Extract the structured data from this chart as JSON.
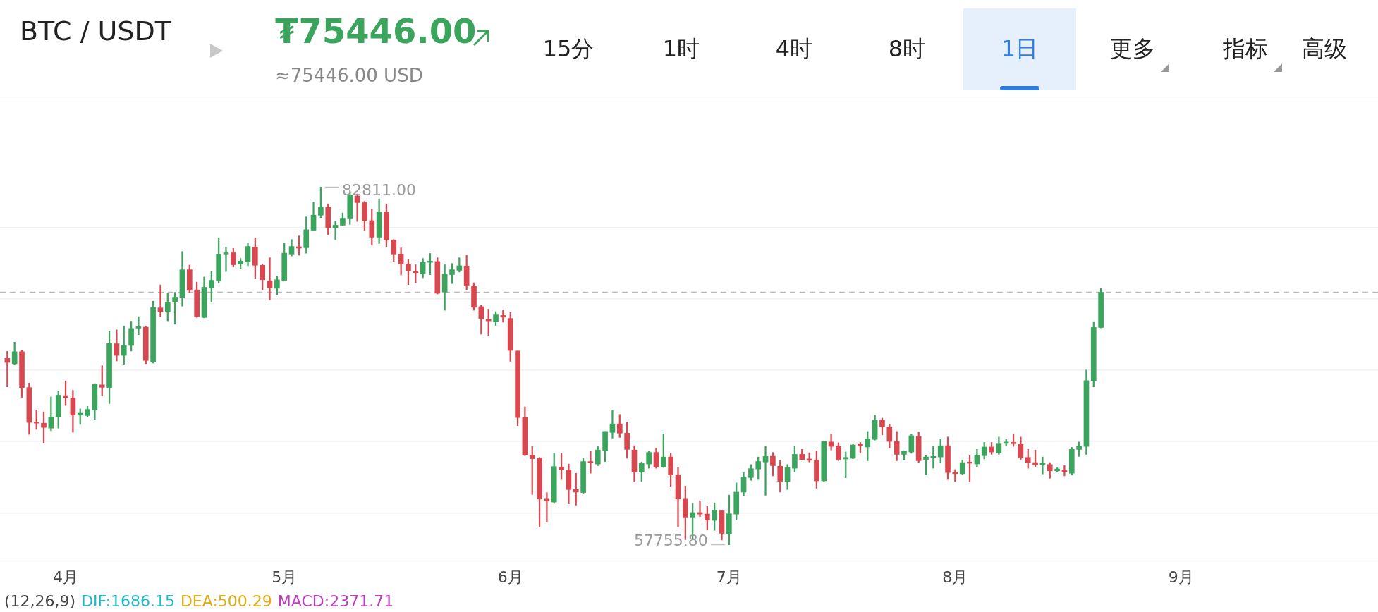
{
  "chart_data": {
    "type": "candlestick",
    "title": "BTC / USDT",
    "subtitle": "≈75446.00 USD",
    "annotations": [
      "₮75446.00",
      "15分",
      "1时",
      "4时",
      "8时",
      "1日",
      "更多",
      "指标",
      "高级",
      "(12,26,9)",
      "DIF:1686.15",
      "DEA:500.29",
      "MACD:2371.71",
      {
        "text": "82811.00",
        "x": "--05-06",
        "y": 82811
      },
      {
        "text": "57755.80",
        "x": "--07-01",
        "y": 57755.8
      }
    ],
    "x": [
      "--03-24",
      "--03-25",
      "--03-26",
      "--03-27",
      "--03-28",
      "--03-29",
      "--03-30",
      "--03-31",
      "--04-01",
      "--04-02",
      "--04-03",
      "--04-04",
      "--04-05",
      "--04-06",
      "--04-07",
      "--04-08",
      "--04-09",
      "--04-10",
      "--04-11",
      "--04-12",
      "--04-13",
      "--04-14",
      "--04-15",
      "--04-16",
      "--04-17",
      "--04-18",
      "--04-19",
      "--04-20",
      "--04-21",
      "--04-22",
      "--04-23",
      "--04-24",
      "--04-25",
      "--04-26",
      "--04-27",
      "--04-28",
      "--04-29",
      "--04-30",
      "--05-01",
      "--05-02",
      "--05-03",
      "--05-04",
      "--05-05",
      "--05-06",
      "--05-07",
      "--05-08",
      "--05-09",
      "--05-10",
      "--05-11",
      "--05-12",
      "--05-13",
      "--05-14",
      "--05-15",
      "--05-16",
      "--05-17",
      "--05-18",
      "--05-19",
      "--05-20",
      "--05-21",
      "--05-22",
      "--05-23",
      "--05-24",
      "--05-25",
      "--05-26",
      "--05-27",
      "--05-28",
      "--05-29",
      "--05-30",
      "--05-31",
      "--06-01",
      "--06-02",
      "--06-03",
      "--06-04",
      "--06-05",
      "--06-06",
      "--06-07",
      "--06-08",
      "--06-09",
      "--06-10",
      "--06-11",
      "--06-12",
      "--06-13",
      "--06-14",
      "--06-15",
      "--06-16",
      "--06-17",
      "--06-18",
      "--06-19",
      "--06-20",
      "--06-21",
      "--06-22",
      "--06-23",
      "--06-24",
      "--06-25",
      "--06-26",
      "--06-27",
      "--06-28",
      "--06-29",
      "--06-30",
      "--07-01",
      "--07-02",
      "--07-03",
      "--07-04",
      "--07-05",
      "--07-06",
      "--07-07",
      "--07-08",
      "--07-09",
      "--07-10",
      "--07-11",
      "--07-12",
      "--07-13",
      "--07-14",
      "--07-15",
      "--07-16",
      "--07-17",
      "--07-18",
      "--07-19",
      "--07-20",
      "--07-21",
      "--07-22",
      "--07-23",
      "--07-24",
      "--07-25",
      "--07-26",
      "--07-27",
      "--07-28",
      "--07-29",
      "--07-30",
      "--07-31",
      "--08-01",
      "--08-02",
      "--08-03",
      "--08-04",
      "--08-05",
      "--08-06",
      "--08-07",
      "--08-08",
      "--08-09",
      "--08-10",
      "--08-11",
      "--08-12",
      "--08-13",
      "--08-14",
      "--08-15",
      "--08-16",
      "--08-17",
      "--08-18",
      "--08-19",
      "--08-20",
      "--08-21"
    ],
    "ohlc": [
      [
        70810,
        71310,
        68820,
        70530
      ],
      [
        70440,
        71950,
        70370,
        71280
      ],
      [
        71280,
        71370,
        68090,
        68770
      ],
      [
        68770,
        69090,
        65490,
        66330
      ],
      [
        66370,
        67210,
        65840,
        66280
      ],
      [
        66280,
        67070,
        64880,
        65980
      ],
      [
        65930,
        68120,
        65750,
        66720
      ],
      [
        66720,
        68540,
        65930,
        68240
      ],
      [
        68210,
        69240,
        67510,
        68070
      ],
      [
        68030,
        68580,
        65630,
        66840
      ],
      [
        66840,
        67280,
        66190,
        66980
      ],
      [
        66810,
        67450,
        66720,
        67240
      ],
      [
        67210,
        69050,
        66540,
        69000
      ],
      [
        68960,
        70300,
        68210,
        68790
      ],
      [
        68770,
        72720,
        67650,
        71860
      ],
      [
        71840,
        72810,
        70630,
        71020
      ],
      [
        71020,
        73070,
        70400,
        71720
      ],
      [
        71720,
        73420,
        71330,
        72910
      ],
      [
        72930,
        73740,
        72470,
        73030
      ],
      [
        73000,
        73070,
        70440,
        70670
      ],
      [
        70580,
        74820,
        70490,
        74390
      ],
      [
        74350,
        75960,
        73740,
        74090
      ],
      [
        74050,
        75370,
        73440,
        74750
      ],
      [
        74750,
        75440,
        73210,
        75100
      ],
      [
        75090,
        78300,
        74470,
        77020
      ],
      [
        77020,
        77350,
        75400,
        75580
      ],
      [
        75610,
        76160,
        73680,
        73740
      ],
      [
        73680,
        76510,
        73650,
        75790
      ],
      [
        75750,
        76890,
        74750,
        76280
      ],
      [
        76250,
        79260,
        76090,
        78120
      ],
      [
        78120,
        78600,
        76890,
        78210
      ],
      [
        78210,
        78510,
        77210,
        77370
      ],
      [
        77420,
        77810,
        77070,
        77630
      ],
      [
        77560,
        78890,
        77300,
        78650
      ],
      [
        78600,
        79260,
        76400,
        77330
      ],
      [
        77330,
        77420,
        75610,
        76320
      ],
      [
        76250,
        77860,
        74910,
        75750
      ],
      [
        75720,
        76580,
        75280,
        76320
      ],
      [
        76280,
        78880,
        76230,
        78180
      ],
      [
        78120,
        79140,
        77980,
        78650
      ],
      [
        78630,
        79390,
        78040,
        78530
      ],
      [
        78560,
        80720,
        78180,
        79820
      ],
      [
        79790,
        81770,
        79770,
        80840
      ],
      [
        80840,
        82811,
        80670,
        81400
      ],
      [
        81400,
        81630,
        79440,
        79960
      ],
      [
        79960,
        80400,
        79120,
        80140
      ],
      [
        80140,
        81000,
        80090,
        80630
      ],
      [
        80630,
        82420,
        80190,
        82250
      ],
      [
        82190,
        82330,
        80400,
        81720
      ],
      [
        81720,
        81810,
        79790,
        80440
      ],
      [
        80460,
        81280,
        78740,
        79300
      ],
      [
        79300,
        81980,
        78860,
        81070
      ],
      [
        81070,
        81630,
        78610,
        79090
      ],
      [
        79090,
        79140,
        77600,
        78120
      ],
      [
        78120,
        78560,
        76650,
        77420
      ],
      [
        77420,
        77720,
        75980,
        76950
      ],
      [
        76930,
        77370,
        76110,
        76820
      ],
      [
        76750,
        77810,
        76460,
        77540
      ],
      [
        77540,
        78160,
        76670,
        77630
      ],
      [
        77600,
        77860,
        75320,
        75370
      ],
      [
        75460,
        77370,
        74180,
        76720
      ],
      [
        76680,
        77460,
        76050,
        77020
      ],
      [
        76980,
        77860,
        76860,
        77300
      ],
      [
        77280,
        78040,
        75630,
        75890
      ],
      [
        75890,
        76110,
        74180,
        74390
      ],
      [
        74440,
        74530,
        72510,
        73600
      ],
      [
        73560,
        74260,
        72420,
        73440
      ],
      [
        73390,
        74090,
        73120,
        73860
      ],
      [
        73820,
        74210,
        73350,
        73700
      ],
      [
        73610,
        74030,
        70610,
        71370
      ],
      [
        71330,
        71330,
        66100,
        66670
      ],
      [
        66670,
        67420,
        64000,
        64050
      ],
      [
        64030,
        64650,
        61280,
        63790
      ],
      [
        63820,
        63880,
        59000,
        60960
      ],
      [
        60960,
        61420,
        59350,
        60820
      ],
      [
        60750,
        64170,
        60660,
        63240
      ],
      [
        63210,
        64170,
        62330,
        63030
      ],
      [
        62980,
        63420,
        60630,
        61630
      ],
      [
        61630,
        62770,
        60540,
        61450
      ],
      [
        61420,
        63820,
        61370,
        63590
      ],
      [
        63590,
        64300,
        62770,
        63520
      ],
      [
        63420,
        64650,
        63300,
        64400
      ],
      [
        64350,
        65700,
        63590,
        65700
      ],
      [
        65630,
        67210,
        65230,
        66230
      ],
      [
        66230,
        66890,
        65280,
        65580
      ],
      [
        65580,
        66370,
        63820,
        64440
      ],
      [
        64400,
        64700,
        62160,
        62860
      ],
      [
        62860,
        63560,
        62190,
        63470
      ],
      [
        63420,
        64300,
        63120,
        64230
      ],
      [
        64230,
        64520,
        63120,
        63210
      ],
      [
        63210,
        65520,
        63170,
        63910
      ],
      [
        63910,
        64170,
        61810,
        62650
      ],
      [
        62650,
        63170,
        59000,
        60960
      ],
      [
        60960,
        61840,
        58120,
        59700
      ],
      [
        59700,
        60660,
        58210,
        60020
      ],
      [
        60020,
        60840,
        59730,
        59910
      ],
      [
        59910,
        60440,
        58790,
        59490
      ],
      [
        59470,
        60700,
        58770,
        60170
      ],
      [
        60140,
        60190,
        58090,
        58560
      ],
      [
        58520,
        61240,
        57755.8,
        59930
      ],
      [
        59910,
        62100,
        59520,
        61450
      ],
      [
        61450,
        62810,
        61190,
        62510
      ],
      [
        62470,
        63380,
        62280,
        63090
      ],
      [
        63070,
        63910,
        62330,
        63590
      ],
      [
        63560,
        64650,
        61230,
        63950
      ],
      [
        63960,
        64230,
        62590,
        63300
      ],
      [
        63260,
        63650,
        61450,
        62210
      ],
      [
        62190,
        63380,
        61630,
        63170
      ],
      [
        63120,
        64650,
        62860,
        64090
      ],
      [
        64090,
        64440,
        63700,
        63740
      ],
      [
        63770,
        64210,
        63560,
        63680
      ],
      [
        63680,
        64350,
        61720,
        62240
      ],
      [
        62240,
        65000,
        62190,
        65000
      ],
      [
        64960,
        65520,
        64400,
        64650
      ],
      [
        64650,
        64910,
        63650,
        63740
      ],
      [
        63770,
        64260,
        62450,
        63880
      ],
      [
        63820,
        64790,
        63790,
        64750
      ],
      [
        64790,
        64930,
        64170,
        64700
      ],
      [
        64610,
        65700,
        63650,
        65170
      ],
      [
        65140,
        66860,
        65090,
        66490
      ],
      [
        66490,
        66630,
        65450,
        66020
      ],
      [
        66020,
        66190,
        64520,
        65000
      ],
      [
        65000,
        65700,
        63650,
        64090
      ],
      [
        64090,
        64350,
        63700,
        64300
      ],
      [
        64260,
        65490,
        64170,
        65400
      ],
      [
        65350,
        65660,
        63520,
        63650
      ],
      [
        63740,
        64000,
        62650,
        63910
      ],
      [
        63880,
        64650,
        63120,
        63950
      ],
      [
        63910,
        65140,
        63520,
        64700
      ],
      [
        64700,
        65310,
        62330,
        62820
      ],
      [
        62820,
        63030,
        62190,
        62740
      ],
      [
        62740,
        63680,
        62680,
        63520
      ],
      [
        63560,
        64000,
        62190,
        63470
      ],
      [
        63420,
        64440,
        63240,
        64050
      ],
      [
        64000,
        64930,
        63770,
        64610
      ],
      [
        64610,
        64930,
        64090,
        64260
      ],
      [
        64210,
        65310,
        64090,
        64820
      ],
      [
        64860,
        65140,
        64700,
        64960
      ],
      [
        64930,
        65490,
        64650,
        64840
      ],
      [
        64790,
        65310,
        63740,
        63880
      ],
      [
        63880,
        64440,
        63120,
        63520
      ],
      [
        63520,
        64400,
        63210,
        63380
      ],
      [
        63350,
        63910,
        62720,
        63470
      ],
      [
        63380,
        63520,
        62420,
        62940
      ],
      [
        62940,
        63150,
        62860,
        63070
      ],
      [
        62980,
        63300,
        62590,
        62860
      ],
      [
        62770,
        64580,
        62650,
        64440
      ],
      [
        64440,
        64960,
        63950,
        64670
      ],
      [
        64650,
        70000,
        64090,
        69260
      ],
      [
        69260,
        73390,
        68820,
        72980
      ],
      [
        72980,
        75750,
        72950,
        75446
      ]
    ],
    "colors": [
      "#d9474f",
      "#3ba55d",
      "#d9474f",
      "#d9474f",
      "#d9474f",
      "#d9474f",
      "#3ba55d",
      "#3ba55d",
      "#d9474f",
      "#d9474f",
      "#3ba55d",
      "#3ba55d",
      "#3ba55d",
      "#d9474f",
      "#3ba55d",
      "#d9474f",
      "#3ba55d",
      "#3ba55d",
      "#3ba55d",
      "#d9474f",
      "#3ba55d",
      "#d9474f",
      "#3ba55d",
      "#3ba55d",
      "#3ba55d",
      "#d9474f",
      "#d9474f",
      "#3ba55d",
      "#3ba55d",
      "#3ba55d",
      "#3ba55d",
      "#d9474f",
      "#3ba55d",
      "#3ba55d",
      "#d9474f",
      "#d9474f",
      "#d9474f",
      "#3ba55d",
      "#3ba55d",
      "#3ba55d",
      "#d9474f",
      "#3ba55d",
      "#3ba55d",
      "#3ba55d",
      "#d9474f",
      "#3ba55d",
      "#3ba55d",
      "#3ba55d",
      "#d9474f",
      "#d9474f",
      "#d9474f",
      "#3ba55d",
      "#d9474f",
      "#d9474f",
      "#d9474f",
      "#d9474f",
      "#d9474f",
      "#3ba55d",
      "#3ba55d",
      "#d9474f",
      "#3ba55d",
      "#3ba55d",
      "#3ba55d",
      "#d9474f",
      "#d9474f",
      "#d9474f",
      "#d9474f",
      "#3ba55d",
      "#d9474f",
      "#d9474f",
      "#d9474f",
      "#d9474f",
      "#d9474f",
      "#d9474f",
      "#d9474f",
      "#3ba55d",
      "#d9474f",
      "#d9474f",
      "#d9474f",
      "#3ba55d",
      "#d9474f",
      "#3ba55d",
      "#3ba55d",
      "#3ba55d",
      "#d9474f",
      "#d9474f",
      "#d9474f",
      "#3ba55d",
      "#3ba55d",
      "#d9474f",
      "#3ba55d",
      "#d9474f",
      "#d9474f",
      "#d9474f",
      "#3ba55d",
      "#d9474f",
      "#d9474f",
      "#3ba55d",
      "#d9474f",
      "#3ba55d",
      "#3ba55d",
      "#3ba55d",
      "#3ba55d",
      "#3ba55d",
      "#3ba55d",
      "#d9474f",
      "#d9474f",
      "#3ba55d",
      "#3ba55d",
      "#d9474f",
      "#d9474f",
      "#d9474f",
      "#3ba55d",
      "#d9474f",
      "#d9474f",
      "#3ba55d",
      "#3ba55d",
      "#d9474f",
      "#3ba55d",
      "#3ba55d",
      "#d9474f",
      "#d9474f",
      "#d9474f",
      "#3ba55d",
      "#3ba55d",
      "#d9474f",
      "#3ba55d",
      "#3ba55d",
      "#3ba55d",
      "#d9474f",
      "#d9474f",
      "#3ba55d",
      "#d9474f",
      "#3ba55d",
      "#3ba55d",
      "#d9474f",
      "#3ba55d",
      "#3ba55d",
      "#d9474f",
      "#d9474f",
      "#d9474f",
      "#d9474f",
      "#3ba55d",
      "#d9474f",
      "#3ba55d",
      "#d9474f",
      "#3ba55d",
      "#3ba55d",
      "#3ba55d",
      "#3ba55d",
      "#3ba55d"
    ],
    "xlim": [
      "--03-23",
      "--09-28"
    ],
    "xticks": [
      {
        "value": "--04-01",
        "label": "4月"
      },
      {
        "value": "--05-01",
        "label": "5月"
      },
      {
        "value": "--06-01",
        "label": "6月"
      },
      {
        "value": "--07-01",
        "label": "7月"
      },
      {
        "value": "--08-01",
        "label": "8月"
      },
      {
        "value": "--09-01",
        "label": "9月"
      }
    ],
    "ylim": [
      56480,
      88950
    ],
    "yticks": [
      {
        "value": 60000,
        "label": null
      },
      {
        "value": 65000,
        "label": null
      },
      {
        "value": 70000,
        "label": null
      },
      {
        "value": 75000,
        "label": null
      },
      {
        "value": 80000,
        "label": null
      }
    ],
    "ref_lines": [
      {
        "axis": "y",
        "value": 75446,
        "color": "#bbbbbb",
        "line_style": "dashed"
      }
    ],
    "grid": "y",
    "tick_labels": "x"
  }
}
